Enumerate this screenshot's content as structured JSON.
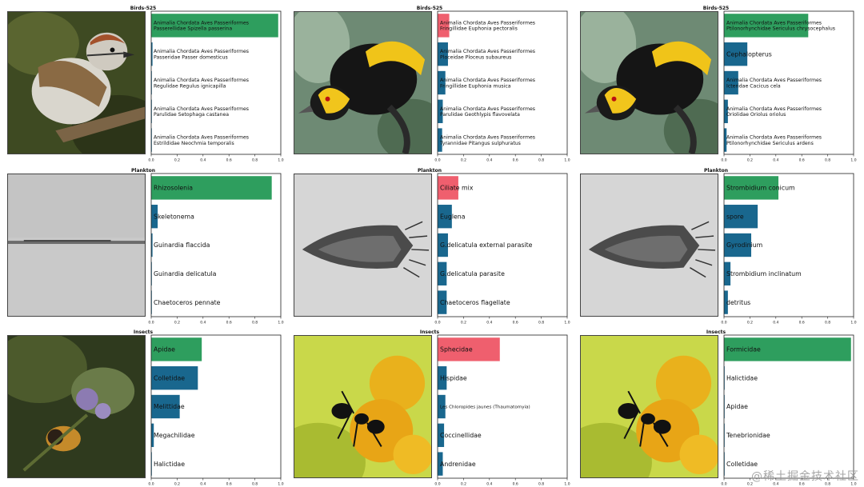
{
  "colors": {
    "correct": "#2e9e5e",
    "wrong": "#ef5f6e",
    "other": "#19678e"
  },
  "watermark": "@稀土掘金技术社区",
  "chart_data": [
    {
      "type": "bar",
      "orientation": "horizontal",
      "title": "Birds-525",
      "xlim": [
        0,
        1
      ],
      "xticks": [
        "0.0",
        "0.2",
        "0.4",
        "0.6",
        "0.8",
        "1.0"
      ],
      "categories": [
        "Animalia Chordata Aves Passeriformes\nPasserellidae Spizella passerina",
        "Animalia Chordata Aves Passeriformes\nPasseridae Passer domesticus",
        "Animalia Chordata Aves Passeriformes\nRegulidae Regulus ignicapilla",
        "Animalia Chordata Aves Passeriformes\nParulidae Setophaga castanea",
        "Animalia Chordata Aves Passeriformes\nEstrildidae Neochmia temporalis"
      ],
      "values": [
        0.98,
        0.01,
        0.005,
        0.004,
        0.003
      ],
      "bar_status": [
        "correct",
        "other",
        "other",
        "other",
        "other"
      ]
    },
    {
      "type": "bar",
      "orientation": "horizontal",
      "title": "Birds-525",
      "xlim": [
        0,
        1
      ],
      "xticks": [
        "0.0",
        "0.2",
        "0.4",
        "0.6",
        "0.8",
        "1.0"
      ],
      "categories": [
        "Animalia Chordata Aves Passeriformes\nFringillidae Euphonia pectoralis",
        "Animalia Chordata Aves Passeriformes\nPloceidae Ploceus subaureus",
        "Animalia Chordata Aves Passeriformes\nFringillidae Euphonia musica",
        "Animalia Chordata Aves Passeriformes\nParulidae Geothlypis flavovelata",
        "Animalia Chordata Aves Passeriformes\nTyrannidae Pitangus sulphuratus"
      ],
      "values": [
        0.09,
        0.08,
        0.06,
        0.04,
        0.035
      ],
      "bar_status": [
        "wrong",
        "other",
        "other",
        "other",
        "other"
      ]
    },
    {
      "type": "bar",
      "orientation": "horizontal",
      "title": "Birds-525",
      "xlim": [
        0,
        1
      ],
      "xticks": [
        "0.0",
        "0.2",
        "0.4",
        "0.6",
        "0.8",
        "1.0"
      ],
      "categories": [
        "Animalia Chordata Aves Passeriformes\nPtilonorhynchidae Sericulus chrysocephalus",
        "Cephalopterus",
        "Animalia Chordata Aves Passeriformes\nIcteridae Cacicus cela",
        "Animalia Chordata Aves Passeriformes\nOriolidae Oriolus oriolus",
        "Animalia Chordata Aves Passeriformes\nPtilonorhynchidae Sericulus ardens"
      ],
      "values": [
        0.65,
        0.18,
        0.11,
        0.03,
        0.02
      ],
      "bar_status": [
        "correct",
        "other",
        "other",
        "other",
        "other"
      ]
    },
    {
      "type": "bar",
      "orientation": "horizontal",
      "title": "Plankton",
      "xlim": [
        0,
        1
      ],
      "xticks": [
        "0.0",
        "0.2",
        "0.4",
        "0.6",
        "0.8",
        "1.0"
      ],
      "categories": [
        "Rhizosolenia",
        "Skeletonema",
        "Guinardia flaccida",
        "Guinardia delicatula",
        "Chaetoceros pennate"
      ],
      "values": [
        0.93,
        0.05,
        0.01,
        0.005,
        0.003
      ],
      "bar_status": [
        "correct",
        "other",
        "other",
        "other",
        "other"
      ]
    },
    {
      "type": "bar",
      "orientation": "horizontal",
      "title": "Plankton",
      "xlim": [
        0,
        1
      ],
      "xticks": [
        "0.0",
        "0.2",
        "0.4",
        "0.6",
        "0.8",
        "1.0"
      ],
      "categories": [
        "Ciliate mix",
        "Euglena",
        "G.delicatula external parasite",
        "G.delicatula parasite",
        "Chaetoceros flagellate"
      ],
      "values": [
        0.16,
        0.11,
        0.08,
        0.07,
        0.07
      ],
      "bar_status": [
        "wrong",
        "other",
        "other",
        "other",
        "other"
      ]
    },
    {
      "type": "bar",
      "orientation": "horizontal",
      "title": "Plankton",
      "xlim": [
        0,
        1
      ],
      "xticks": [
        "0.0",
        "0.2",
        "0.4",
        "0.6",
        "0.8",
        "1.0"
      ],
      "categories": [
        "Strombidium conicum",
        "spore",
        "Gyrodinium",
        "Strombidium inclinatum",
        "detritus"
      ],
      "values": [
        0.42,
        0.26,
        0.21,
        0.05,
        0.03
      ],
      "bar_status": [
        "correct",
        "other",
        "other",
        "other",
        "other"
      ]
    },
    {
      "type": "bar",
      "orientation": "horizontal",
      "title": "Insects",
      "xlim": [
        0,
        1
      ],
      "xticks": [
        "0.0",
        "0.2",
        "0.4",
        "0.6",
        "0.8",
        "1.0"
      ],
      "categories": [
        "Apidae",
        "Colletidae",
        "Melittidae",
        "Megachilidae",
        "Halictidae"
      ],
      "values": [
        0.39,
        0.36,
        0.22,
        0.02,
        0.005
      ],
      "bar_status": [
        "correct",
        "other",
        "other",
        "other",
        "other"
      ]
    },
    {
      "type": "bar",
      "orientation": "horizontal",
      "title": "Insects",
      "xlim": [
        0,
        1
      ],
      "xticks": [
        "0.0",
        "0.2",
        "0.4",
        "0.6",
        "0.8",
        "1.0"
      ],
      "categories": [
        "Sphecidae",
        "Hispidae",
        "Les Chloropides jaunes (Thaumatomyia)",
        "Coccinellidae",
        "Andrenidae"
      ],
      "values": [
        0.48,
        0.07,
        0.06,
        0.05,
        0.04
      ],
      "bar_status": [
        "wrong",
        "other",
        "other",
        "other",
        "other"
      ]
    },
    {
      "type": "bar",
      "orientation": "horizontal",
      "title": "Insects",
      "xlim": [
        0,
        1
      ],
      "xticks": [
        "0.0",
        "0.2",
        "0.4",
        "0.6",
        "0.8",
        "1.0"
      ],
      "categories": [
        "Formicidae",
        "Halictidae",
        "Apidae",
        "Tenebrionidae",
        "Colletidae"
      ],
      "values": [
        0.98,
        0.005,
        0.004,
        0.003,
        0.002
      ],
      "bar_status": [
        "correct",
        "other",
        "other",
        "other",
        "other"
      ]
    }
  ]
}
